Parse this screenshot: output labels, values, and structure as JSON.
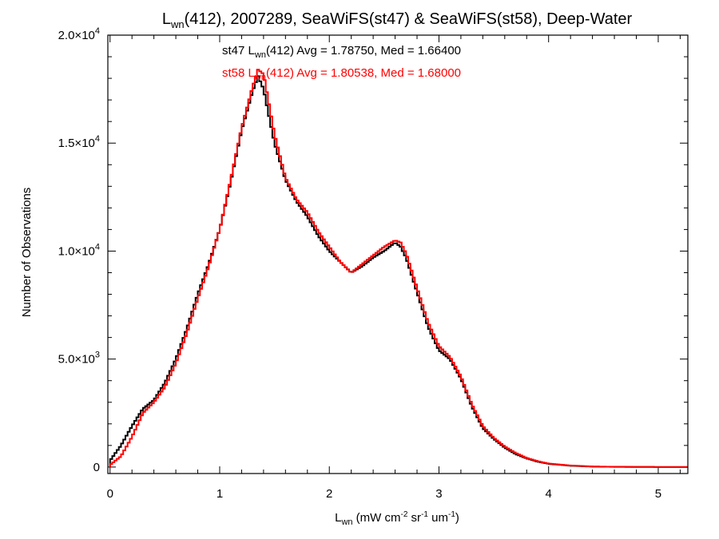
{
  "chart_data": {
    "type": "line",
    "title": {
      "main": "L",
      "sub": "wn",
      "rest": "(412), 2007289, SeaWiFS(st47) & SeaWiFS(st58), Deep-Water"
    },
    "xlabel": {
      "main": "L",
      "sub": "wn",
      "rest": " (mW cm",
      "e1": "-2",
      "mid1": " sr",
      "e2": "-1",
      "mid2": " um",
      "e3": "-1",
      "end": ")"
    },
    "ylabel": "Number of Observations",
    "xlim": [
      -0.02,
      5.27
    ],
    "ylim": [
      -300,
      20000
    ],
    "x_ticks": [
      {
        "value": 0,
        "label": "0"
      },
      {
        "value": 1,
        "label": "1"
      },
      {
        "value": 2,
        "label": "2"
      },
      {
        "value": 3,
        "label": "3"
      },
      {
        "value": 4,
        "label": "4"
      },
      {
        "value": 5,
        "label": "5"
      }
    ],
    "y_ticks": [
      {
        "value": 0,
        "mant": "0",
        "exp": ""
      },
      {
        "value": 5000,
        "mant": "5.0×10",
        "exp": "3"
      },
      {
        "value": 10000,
        "mant": "1.0×10",
        "exp": "4"
      },
      {
        "value": 15000,
        "mant": "1.5×10",
        "exp": "4"
      },
      {
        "value": 20000,
        "mant": "2.0×10",
        "exp": "4"
      }
    ],
    "legend": {
      "placement": "top-center",
      "entries": [
        {
          "prefix": "st47 L",
          "sub": "wn",
          "rest": "(412) Avg = 1.78750, Med = 1.66400",
          "color": "#000000"
        },
        {
          "prefix": "st58 L",
          "sub": "wn",
          "rest": "(412) Avg = 1.80538, Med = 1.68000",
          "color": "#ff0000"
        }
      ]
    },
    "series": [
      {
        "name": "st47",
        "color": "#000000",
        "x": [
          0.0,
          0.1,
          0.2,
          0.3,
          0.4,
          0.5,
          0.6,
          0.7,
          0.8,
          0.9,
          1.0,
          1.1,
          1.2,
          1.3,
          1.35,
          1.4,
          1.5,
          1.6,
          1.7,
          1.8,
          1.9,
          2.0,
          2.1,
          2.2,
          2.3,
          2.4,
          2.5,
          2.6,
          2.65,
          2.7,
          2.8,
          2.9,
          3.0,
          3.1,
          3.2,
          3.3,
          3.4,
          3.5,
          3.6,
          3.7,
          3.8,
          3.9,
          4.0,
          4.2,
          4.4,
          4.6,
          4.8,
          5.0,
          5.27
        ],
        "y": [
          300,
          1000,
          1900,
          2700,
          3100,
          3900,
          5000,
          6400,
          8000,
          9400,
          11000,
          13200,
          15600,
          17400,
          18100,
          17500,
          15000,
          13300,
          12300,
          11600,
          10700,
          10000,
          9500,
          9000,
          9300,
          9700,
          10000,
          10400,
          10200,
          9700,
          8100,
          6500,
          5400,
          5000,
          4100,
          2800,
          1800,
          1300,
          900,
          600,
          400,
          250,
          150,
          60,
          20,
          10,
          5,
          2,
          0
        ]
      },
      {
        "name": "st58",
        "color": "#ff0000",
        "x": [
          0.0,
          0.1,
          0.2,
          0.3,
          0.4,
          0.5,
          0.6,
          0.7,
          0.8,
          0.9,
          1.0,
          1.1,
          1.2,
          1.3,
          1.35,
          1.4,
          1.5,
          1.6,
          1.7,
          1.8,
          1.9,
          2.0,
          2.1,
          2.2,
          2.3,
          2.4,
          2.5,
          2.6,
          2.65,
          2.7,
          2.8,
          2.9,
          3.0,
          3.1,
          3.2,
          3.3,
          3.4,
          3.5,
          3.6,
          3.7,
          3.8,
          3.9,
          4.0,
          4.2,
          4.4,
          4.6,
          4.8,
          5.0,
          5.27
        ],
        "y": [
          100,
          500,
          1400,
          2500,
          3000,
          3700,
          4800,
          6200,
          7800,
          9300,
          11000,
          13300,
          15700,
          17600,
          18400,
          18200,
          15400,
          13400,
          12400,
          11800,
          10900,
          10200,
          9500,
          9000,
          9400,
          9800,
          10200,
          10500,
          10400,
          9900,
          8300,
          6700,
          5600,
          5100,
          4200,
          2900,
          1900,
          1350,
          950,
          650,
          420,
          270,
          160,
          70,
          25,
          12,
          6,
          2,
          0
        ]
      }
    ]
  }
}
